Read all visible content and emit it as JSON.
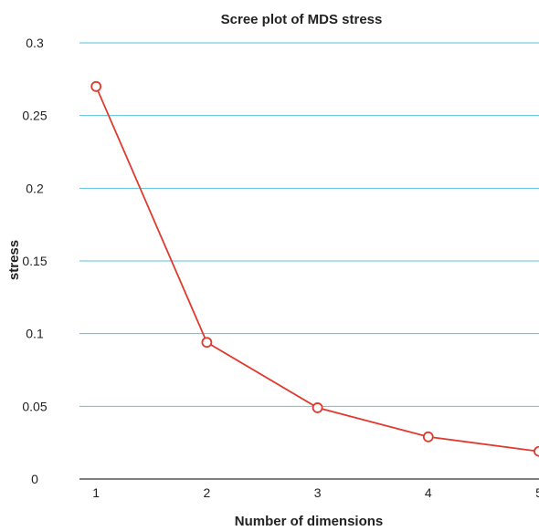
{
  "chart_data": {
    "type": "line",
    "title": "Scree plot of MDS stress",
    "xlabel": "Number of dimensions",
    "ylabel": "stress",
    "x": [
      1,
      2,
      3,
      4,
      5
    ],
    "series": [
      {
        "values": [
          0.27,
          0.094,
          0.049,
          0.029,
          0.019
        ]
      }
    ],
    "xlim": [
      0.85,
      5.0
    ],
    "ylim": [
      0,
      0.3
    ],
    "x_ticks": [
      "1",
      "2",
      "3",
      "4",
      "5"
    ],
    "y_ticks": [
      "0",
      "0.05",
      "0.1",
      "0.15",
      "0.2",
      "0.25",
      "0.3"
    ],
    "grid": "horizontal",
    "colors": {
      "line": "#e03a2e",
      "grid": "#5bc0de",
      "axis": "#333333"
    }
  }
}
